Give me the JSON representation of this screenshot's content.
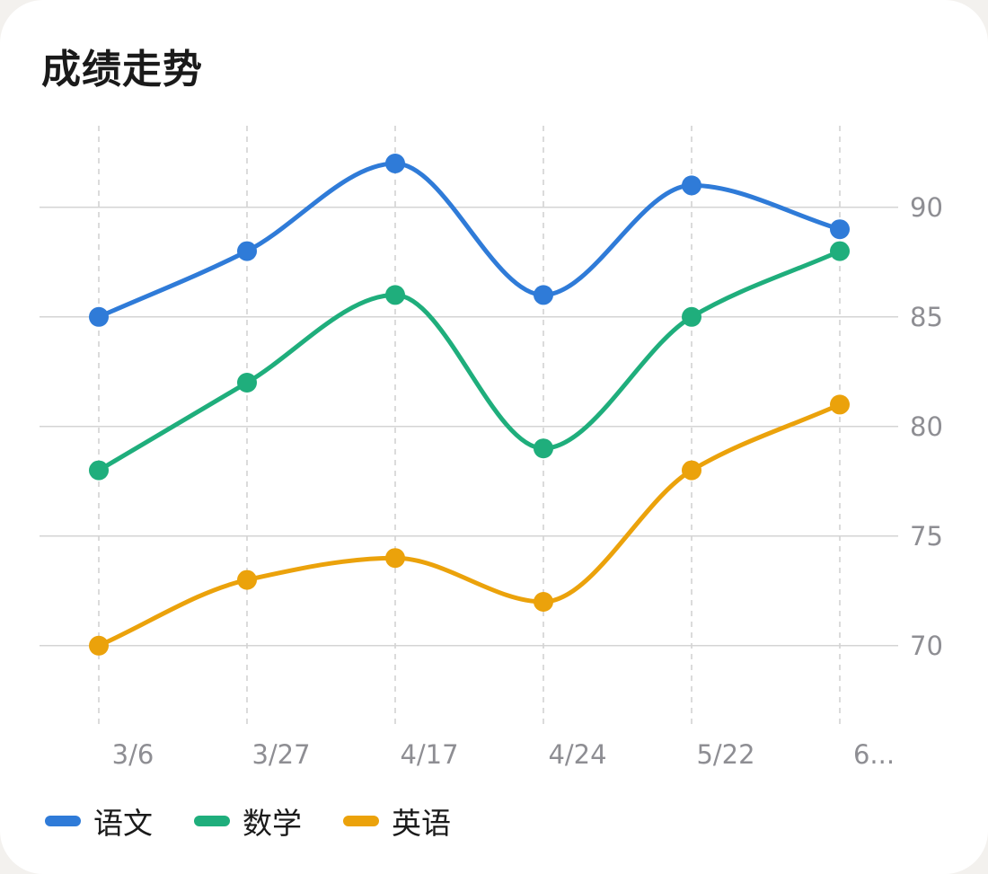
{
  "title": "成绩走势",
  "chart_data": {
    "type": "line",
    "categories": [
      "3/6",
      "3/27",
      "4/17",
      "4/24",
      "5/22",
      "6..."
    ],
    "series": [
      {
        "name": "语文",
        "color": "#2f7bd8",
        "values": [
          85,
          88,
          92,
          86,
          91,
          89
        ]
      },
      {
        "name": "数学",
        "color": "#1fae7c",
        "values": [
          78,
          82,
          86,
          79,
          85,
          88
        ]
      },
      {
        "name": "英语",
        "color": "#eba20b",
        "values": [
          70,
          73,
          74,
          72,
          78,
          81
        ]
      }
    ],
    "yticks": [
      70,
      75,
      80,
      85,
      90
    ],
    "ylim": [
      67,
      94.5
    ],
    "y_axis_side": "right",
    "grid": true,
    "smooth": true,
    "legend_position": "bottom-left"
  }
}
